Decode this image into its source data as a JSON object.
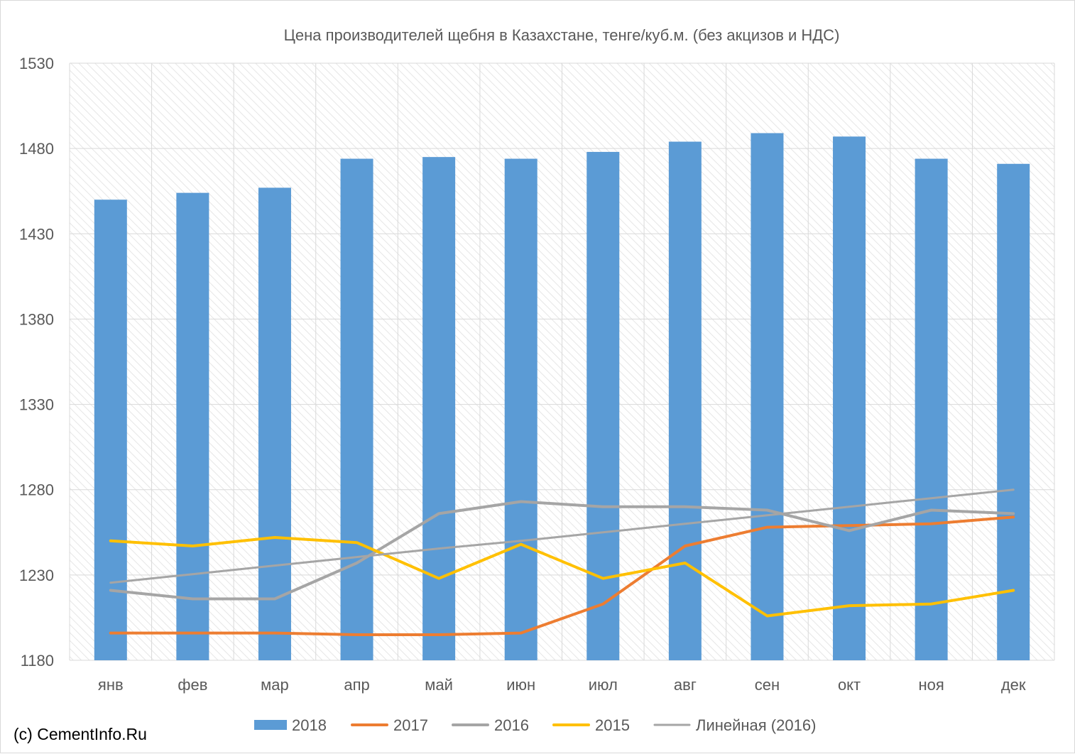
{
  "chart_data": {
    "type": "bar",
    "title": "Цена производителей щебня в Казахстане, тенге/куб.м. (без акцизов и НДС)",
    "categories": [
      "янв",
      "фев",
      "мар",
      "апр",
      "май",
      "июн",
      "июл",
      "авг",
      "сен",
      "окт",
      "ноя",
      "дек"
    ],
    "y_ticks": [
      1180,
      1230,
      1280,
      1330,
      1380,
      1430,
      1480,
      1530
    ],
    "ylim": [
      1180,
      1530
    ],
    "grid": true,
    "legend_position": "bottom",
    "series": [
      {
        "name": "2018",
        "type": "bar",
        "color": "#5B9BD5",
        "values": [
          1450,
          1454,
          1457,
          1474,
          1475,
          1474,
          1478,
          1484,
          1489,
          1487,
          1474,
          1471
        ]
      },
      {
        "name": "2017",
        "type": "line",
        "color": "#ED7D31",
        "values": [
          1196,
          1196,
          1196,
          1195,
          1195,
          1196,
          1213,
          1247,
          1258,
          1259,
          1260,
          1264
        ]
      },
      {
        "name": "2016",
        "type": "line",
        "color": "#A5A5A5",
        "values": [
          1221,
          1216,
          1216,
          1237,
          1266,
          1273,
          1270,
          1270,
          1268,
          1256,
          1268,
          1266
        ]
      },
      {
        "name": "2015",
        "type": "line",
        "color": "#FFC000",
        "values": [
          1250,
          1247,
          1252,
          1249,
          1228,
          1248,
          1228,
          1237,
          1206,
          1212,
          1213,
          1221
        ]
      },
      {
        "name": "Линейная (2016)",
        "type": "trendline",
        "color": "#A5A5A5",
        "values": [
          1225.5,
          1230.5,
          1235.5,
          1240.5,
          1245.5,
          1250,
          1255,
          1260,
          1265,
          1270,
          1275,
          1280
        ]
      }
    ]
  },
  "credit": "(c) CementInfo.Ru"
}
